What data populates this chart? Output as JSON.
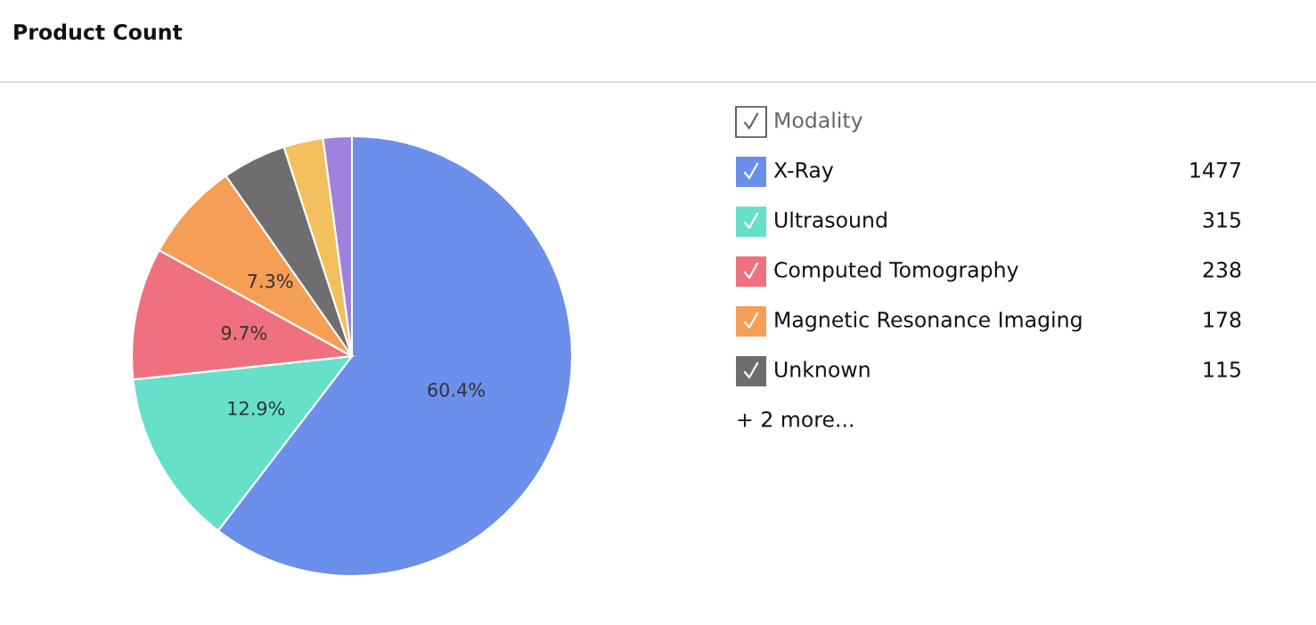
{
  "chart_data": {
    "type": "pie",
    "title": "Product Count",
    "legend_title": "Modality",
    "legend": "right",
    "categories": [
      "X-Ray",
      "Ultrasound",
      "Computed Tomography",
      "Magnetic Resonance Imaging",
      "Unknown",
      null,
      null
    ],
    "values": [
      60.4,
      12.9,
      9.7,
      7.3,
      4.7,
      2.9,
      2.1
    ],
    "colors": [
      "#6b8fea",
      "#66e0c8",
      "#ef717f",
      "#f59e55",
      "#6e6e6e",
      "#f2c15d",
      "#a082de"
    ],
    "value_labels": [
      "60.4%",
      "12.9%",
      "9.7%",
      "7.3%",
      null,
      null,
      null
    ],
    "annotations": [
      "1477",
      "315",
      "238",
      "178",
      "115",
      "+ 2 more..."
    ]
  }
}
